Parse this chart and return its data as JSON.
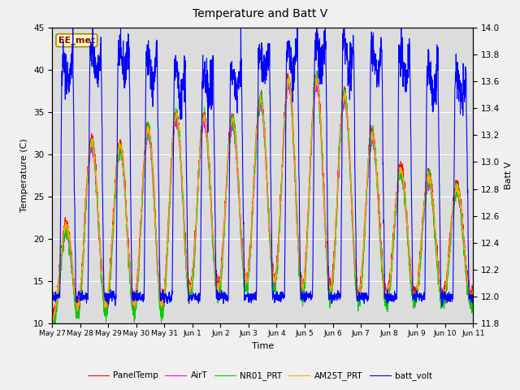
{
  "title": "Temperature and Batt V",
  "xlabel": "Time",
  "ylabel_left": "Temperature (C)",
  "ylabel_right": "Batt V",
  "ylim_left": [
    10,
    45
  ],
  "ylim_right": [
    11.8,
    14.0
  ],
  "annotation": "EE_met",
  "fig_bg_color": "#f0f0f0",
  "plot_bg_color": "#dcdcdc",
  "legend_items": [
    "PanelTemp",
    "AirT",
    "NR01_PRT",
    "AM25T_PRT",
    "batt_volt"
  ],
  "legend_colors": [
    "#ff0000",
    "#ff00ff",
    "#00cc00",
    "#ffa500",
    "#0000ff"
  ],
  "x_tick_labels": [
    "May 27",
    "May 28",
    "May 29",
    "May 30",
    "May 31",
    "Jun 1",
    "Jun 2",
    "Jun 3",
    "Jun 4",
    "Jun 5",
    "Jun 6",
    "Jun 7",
    "Jun 8",
    "Jun 9",
    "Jun 10",
    "Jun 11"
  ],
  "num_days": 15,
  "pts_per_day": 144
}
